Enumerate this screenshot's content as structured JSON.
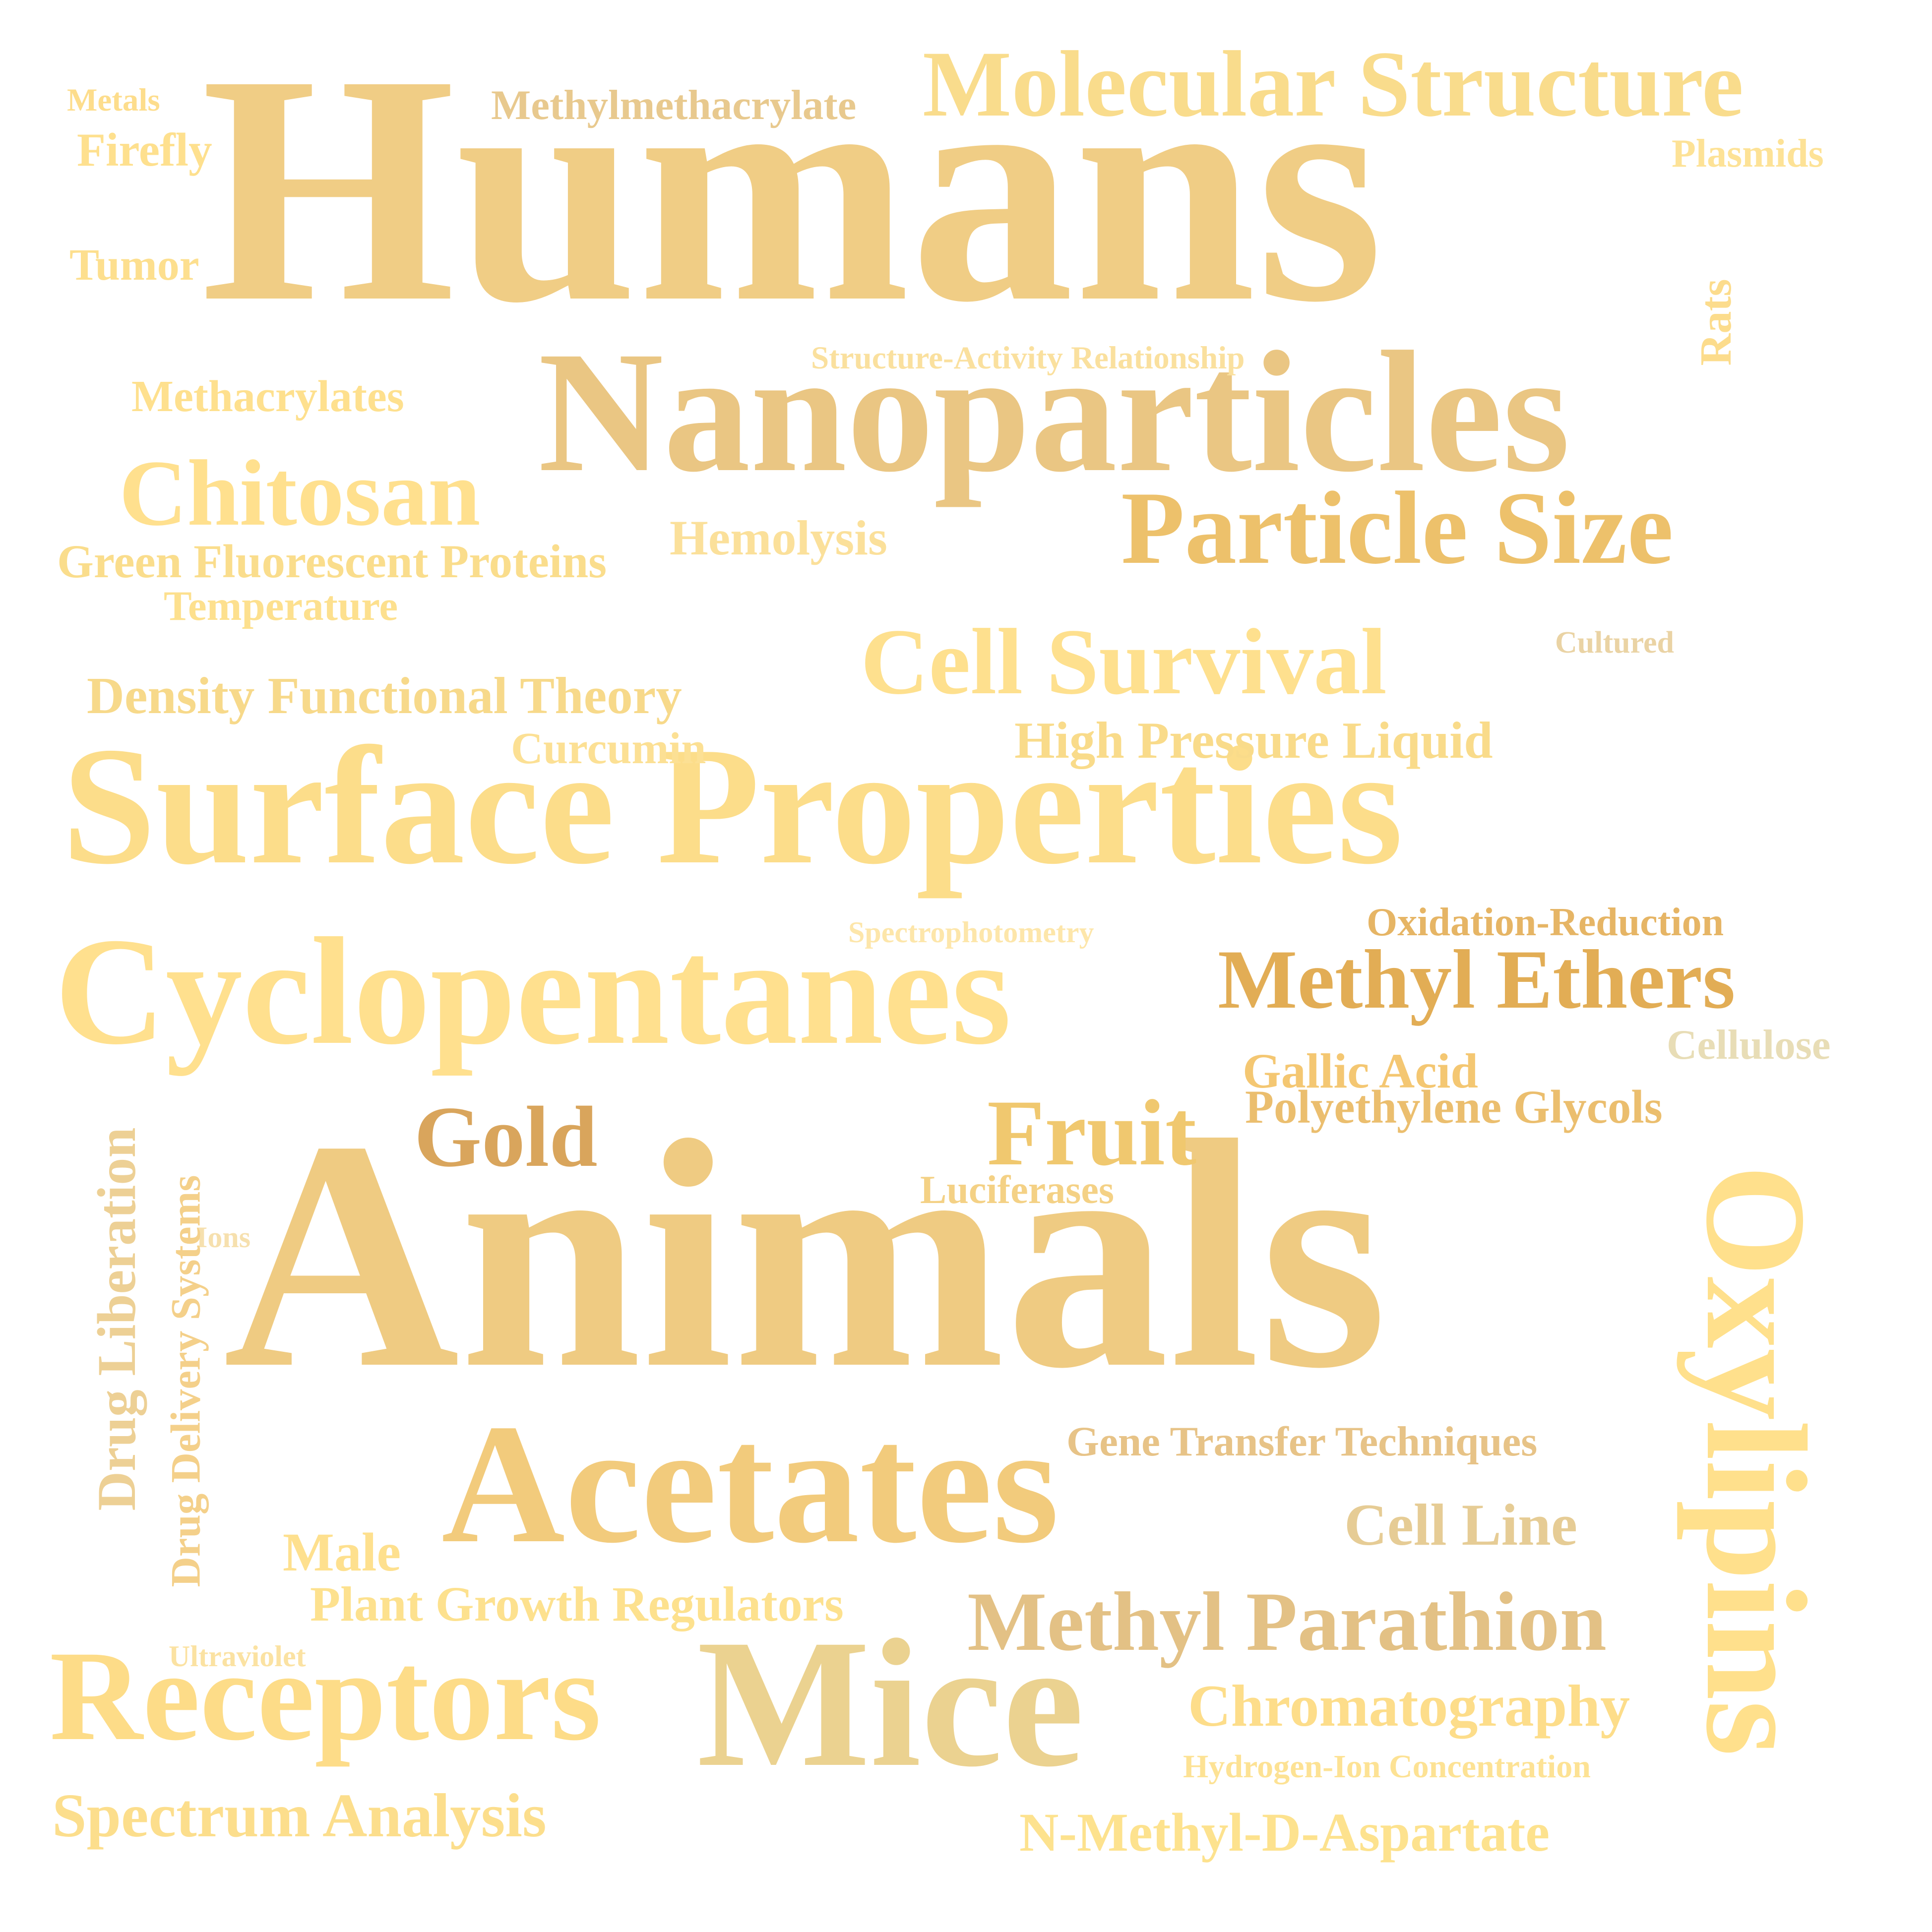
{
  "cloud": {
    "words": [
      {
        "id": "humans",
        "text": "Humans",
        "color": "#F0CD85"
      },
      {
        "id": "animals",
        "text": "Animals",
        "color": "#EFCB82"
      },
      {
        "id": "nanoparticles",
        "text": "Nanoparticles",
        "color": "#EAC683"
      },
      {
        "id": "surface_properties",
        "text": "Surface Properties",
        "color": "#FCDD8A"
      },
      {
        "id": "cyclopentanes",
        "text": "Cyclopentanes",
        "color": "#FFE08E"
      },
      {
        "id": "acetates",
        "text": "Acetates",
        "color": "#F2CB7C"
      },
      {
        "id": "mice",
        "text": "Mice",
        "color": "#EBD290"
      },
      {
        "id": "receptors",
        "text": "Receptors",
        "color": "#FDDC88"
      },
      {
        "id": "oxylipins",
        "text": "Oxylipins",
        "color": "#FFE08C"
      },
      {
        "id": "molecular_structure",
        "text": "Molecular Structure",
        "color": "#F9DC8C"
      },
      {
        "id": "particle_size",
        "text": "Particle Size",
        "color": "#EDC16B"
      },
      {
        "id": "methyl_ethers",
        "text": "Methyl Ethers",
        "color": "#E2AD55"
      },
      {
        "id": "cell_survival",
        "text": "Cell Survival",
        "color": "#FEE08E"
      },
      {
        "id": "chitosan",
        "text": "Chitosan",
        "color": "#FFE08E"
      },
      {
        "id": "methyl_parathion",
        "text": "Methyl Parathion",
        "color": "#E3C185"
      },
      {
        "id": "fruit",
        "text": "Fruit",
        "color": "#F0C86F"
      },
      {
        "id": "gold",
        "text": "Gold",
        "color": "#D9A55C"
      },
      {
        "id": "spectrum_analysis",
        "text": "Spectrum Analysis",
        "color": "#FCDE8C"
      },
      {
        "id": "nmda",
        "text": "N-Methyl-D-Aspartate",
        "color": "#FDE28E"
      },
      {
        "id": "chromatography",
        "text": "Chromatography",
        "color": "#FDDD8A"
      },
      {
        "id": "density_functional_theory",
        "text": "Density Functional Theory",
        "color": "#F7D98A"
      },
      {
        "id": "high_pressure_liquid",
        "text": "High Pressure Liquid",
        "color": "#F9DB8A"
      },
      {
        "id": "plant_growth_regulators",
        "text": "Plant Growth Regulators",
        "color": "#FDE18E"
      },
      {
        "id": "green_fluorescent_proteins",
        "text": "Green Fluorescent Proteins",
        "color": "#FADD8C"
      },
      {
        "id": "gallic_acid",
        "text": "Gallic Acid",
        "color": "#F4C772"
      },
      {
        "id": "polyethylene_glycols",
        "text": "Polyethylene Glycols",
        "color": "#EBBE6E"
      },
      {
        "id": "gene_transfer_techniques",
        "text": "Gene Transfer Techniques",
        "color": "#E7C387"
      },
      {
        "id": "cell_line",
        "text": "Cell Line",
        "color": "#E6CC95"
      },
      {
        "id": "hemolysis",
        "text": "Hemolysis",
        "color": "#FBE09A"
      },
      {
        "id": "methylmethacrylate",
        "text": "Methylmethacrylate",
        "color": "#E8C98E"
      },
      {
        "id": "methacrylates",
        "text": "Methacrylates",
        "color": "#FEE08E"
      },
      {
        "id": "temperature",
        "text": "Temperature",
        "color": "#FDE08E"
      },
      {
        "id": "curcumin",
        "text": "Curcumin",
        "color": "#FCE094"
      },
      {
        "id": "luciferases",
        "text": "Luciferases",
        "color": "#F4D185"
      },
      {
        "id": "oxidation_reduction",
        "text": "Oxidation-Reduction",
        "color": "#E6B565"
      },
      {
        "id": "male",
        "text": "Male",
        "color": "#FEE08E"
      },
      {
        "id": "firefly",
        "text": "Firefly",
        "color": "#FEE08E"
      },
      {
        "id": "tumor",
        "text": "Tumor",
        "color": "#FDDF8E"
      },
      {
        "id": "metals",
        "text": "Metals",
        "color": "#FDDD8C"
      },
      {
        "id": "plasmids",
        "text": "Plasmids",
        "color": "#FDE296"
      },
      {
        "id": "cellulose",
        "text": "Cellulose",
        "color": "#E8DDB6"
      },
      {
        "id": "structure_activity_relationship",
        "text": "Structure-Activity Relationship",
        "color": "#FAE09E"
      },
      {
        "id": "spectrophotometry",
        "text": "Spectrophotometry",
        "color": "#FDE6AA"
      },
      {
        "id": "cultured",
        "text": "Cultured",
        "color": "#EAD3A4"
      },
      {
        "id": "hydrogen_ion_concentration",
        "text": "Hydrogen-Ion Concentration",
        "color": "#FDE294"
      },
      {
        "id": "ions",
        "text": "Ions",
        "color": "#F6E0AE"
      },
      {
        "id": "ultraviolet",
        "text": "Ultraviolet",
        "color": "#FBE2A2"
      },
      {
        "id": "rats",
        "text": "Rats",
        "color": "#FCDC8C"
      },
      {
        "id": "drug_liberation",
        "text": "Drug Liberation",
        "color": "#EDD095"
      },
      {
        "id": "drug_delivery_systems",
        "text": "Drug Delivery Systems",
        "color": "#F4D08A"
      }
    ]
  }
}
